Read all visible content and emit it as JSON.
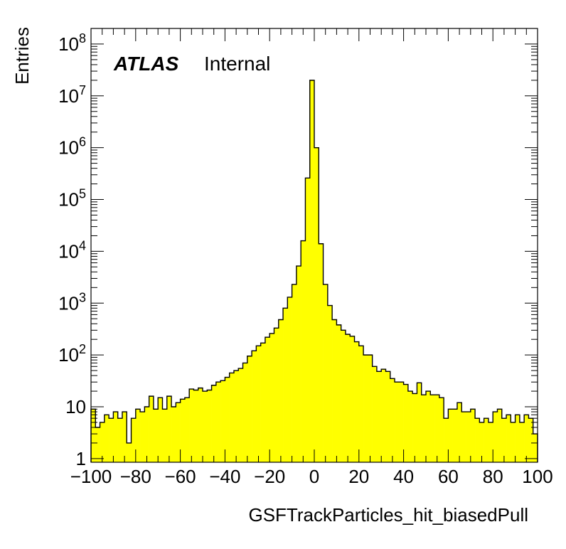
{
  "chart_data": {
    "type": "bar",
    "style": "histogram",
    "fill_color": "#ffff00",
    "line_color": "#000000",
    "label": {
      "experiment": "ATLAS",
      "status": "Internal"
    },
    "xlabel": "GSFTrackParticles_hit_biasedPull",
    "ylabel": "Entries",
    "xlim": [
      -100,
      100
    ],
    "ylim": [
      0.85,
      200000000
    ],
    "y_scale": "log",
    "x_ticks": [
      -100,
      -80,
      -60,
      -40,
      -20,
      0,
      20,
      40,
      60,
      80,
      100
    ],
    "x_tick_labels": [
      "−100",
      "−80",
      "−60",
      "−40",
      "−20",
      "0",
      "20",
      "40",
      "60",
      "80",
      "100"
    ],
    "y_tick_labels": [
      {
        "value": 1,
        "base": "1",
        "exp": ""
      },
      {
        "value": 10,
        "base": "10",
        "exp": ""
      },
      {
        "value": 100,
        "base": "10",
        "exp": "2"
      },
      {
        "value": 1000,
        "base": "10",
        "exp": "3"
      },
      {
        "value": 10000,
        "base": "10",
        "exp": "4"
      },
      {
        "value": 100000,
        "base": "10",
        "exp": "5"
      },
      {
        "value": 1000000,
        "base": "10",
        "exp": "6"
      },
      {
        "value": 10000000,
        "base": "10",
        "exp": "7"
      },
      {
        "value": 100000000,
        "base": "10",
        "exp": "8"
      }
    ],
    "bin_width": 2,
    "bin_start": -100,
    "values": [
      9,
      4,
      5,
      7,
      6,
      8,
      6,
      8,
      2,
      6,
      9,
      8,
      10,
      16,
      9,
      15,
      9,
      16,
      10,
      12,
      14,
      15,
      22,
      21,
      23,
      20,
      21,
      26,
      30,
      32,
      37,
      45,
      50,
      55,
      70,
      95,
      120,
      150,
      170,
      220,
      260,
      330,
      480,
      800,
      1300,
      2300,
      5200,
      16000,
      260000,
      20000000,
      1000000,
      14000,
      2300,
      900,
      480,
      380,
      300,
      250,
      230,
      180,
      150,
      100,
      100,
      60,
      48,
      53,
      48,
      35,
      30,
      30,
      27,
      20,
      18,
      29,
      17,
      20,
      17,
      17,
      15,
      6,
      9,
      9,
      12,
      8,
      8,
      9,
      6,
      5,
      6,
      5,
      8,
      9,
      6,
      7,
      5,
      7,
      5,
      7,
      6,
      3
    ]
  }
}
